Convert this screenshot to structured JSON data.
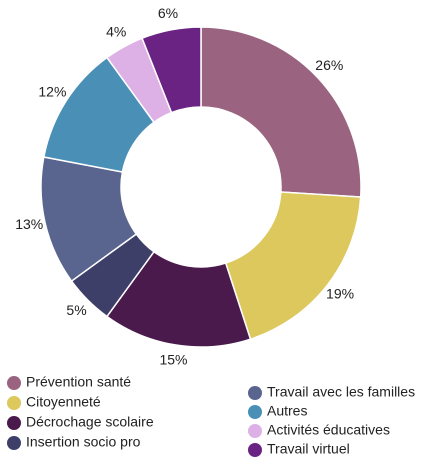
{
  "chart_data": {
    "type": "donut",
    "categories": [
      "Prévention santé",
      "Citoyenneté",
      "Décrochage scolaire",
      "Insertion socio pro",
      "Travail avec les familles",
      "Autres",
      "Activités éducatives",
      "Travail virtuel"
    ],
    "values": [
      26,
      19,
      15,
      5,
      13,
      12,
      4,
      6
    ],
    "value_labels": [
      "26%",
      "19%",
      "15%",
      "5%",
      "13%",
      "12%",
      "4%",
      "6%"
    ],
    "colors": [
      "#9a6380",
      "#dcc85c",
      "#4b1a4c",
      "#3e3f69",
      "#59648f",
      "#4a8fb6",
      "#deb1e6",
      "#6b2383"
    ],
    "legend": "bottom"
  }
}
